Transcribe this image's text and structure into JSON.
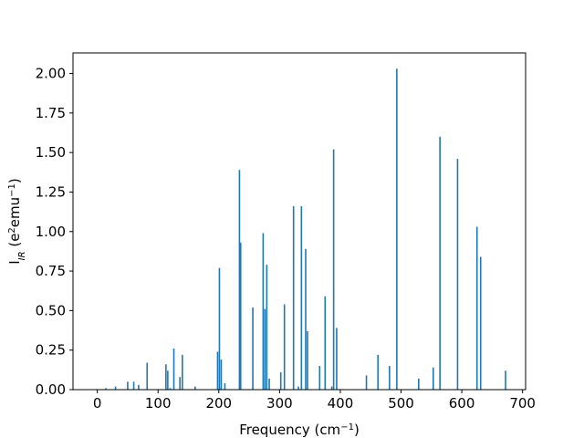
{
  "chart_data": {
    "type": "bar",
    "title": "",
    "xlabel": "Frequency (cm$^{-1}$)",
    "ylabel": "I$_{IR}$ (e$^2$emu$^{-1}$)",
    "xlim": [
      -40,
      705
    ],
    "ylim": [
      0,
      2.13
    ],
    "xticks": [
      0,
      100,
      200,
      300,
      400,
      500,
      600,
      700
    ],
    "yticks": [
      0.0,
      0.25,
      0.5,
      0.75,
      1.0,
      1.25,
      1.5,
      1.75,
      2.0
    ],
    "grid": false,
    "bar_color": "#1f77b4",
    "series": [
      {
        "x": [
          14,
          30,
          50,
          60,
          68,
          82,
          113,
          116,
          120,
          126,
          136,
          140,
          161,
          198,
          201,
          204,
          210,
          234,
          236,
          256,
          273,
          276,
          279,
          283,
          302,
          308,
          323,
          331,
          336,
          343,
          346,
          366,
          375,
          386,
          389,
          394,
          443,
          462,
          481,
          493,
          529,
          553,
          564,
          593,
          625,
          631,
          672
        ],
        "values": [
          0.01,
          0.02,
          0.05,
          0.05,
          0.03,
          0.17,
          0.16,
          0.12,
          0.01,
          0.26,
          0.08,
          0.22,
          0.02,
          0.24,
          0.77,
          0.19,
          0.04,
          1.39,
          0.93,
          0.52,
          0.99,
          0.51,
          0.79,
          0.07,
          0.11,
          0.54,
          1.16,
          0.02,
          1.16,
          0.89,
          0.37,
          0.15,
          0.59,
          0.02,
          1.52,
          0.39,
          0.09,
          0.22,
          0.15,
          2.03,
          0.07,
          0.14,
          1.6,
          1.46,
          1.03,
          0.84,
          0.12
        ]
      }
    ]
  }
}
